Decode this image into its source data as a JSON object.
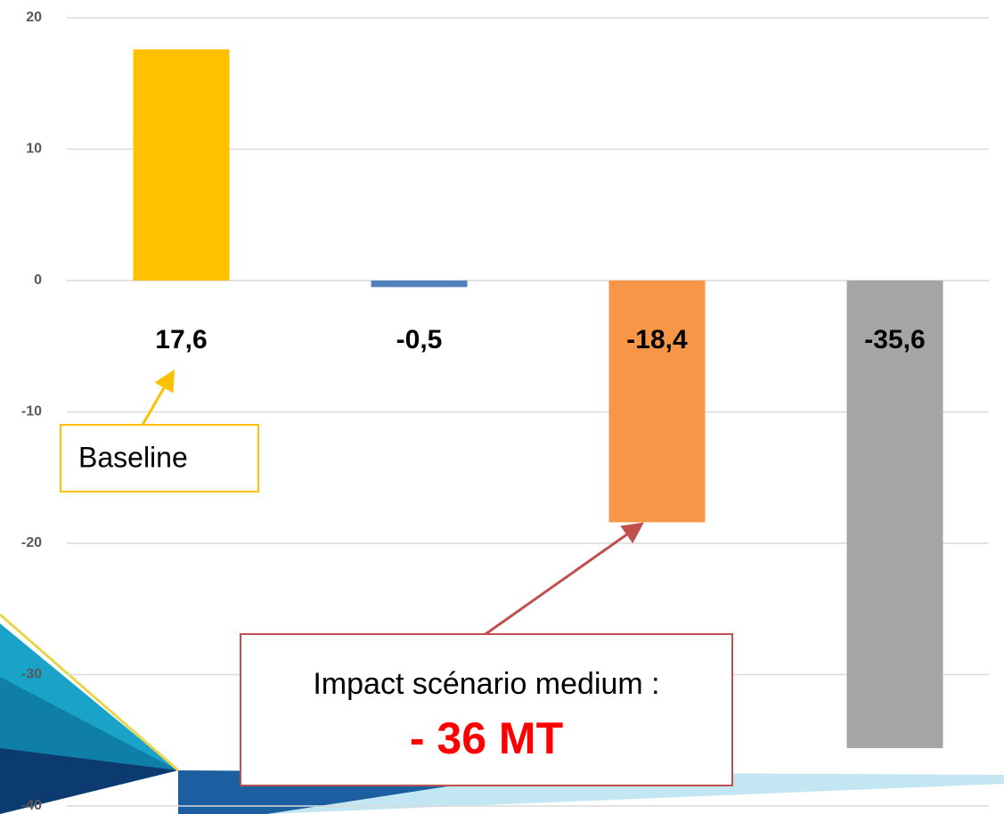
{
  "chart_data": {
    "type": "bar",
    "categories": [
      null,
      null,
      null,
      null
    ],
    "series": [
      {
        "values": [
          17.6,
          -0.5,
          -18.4,
          -35.6
        ],
        "value_labels": [
          "17,6",
          "-0,5",
          "-18,4",
          "-35,6"
        ],
        "colors": [
          "#ffc000",
          "#4f81bd",
          "#f79646",
          "#a5a5a5"
        ]
      }
    ],
    "ylim": [
      -40,
      20
    ],
    "yticks": [
      -40,
      -30,
      -20,
      -10,
      0,
      10,
      20
    ],
    "grid": true,
    "annotations": [
      {
        "text": "Baseline"
      },
      {
        "text": "Impact scénario medium :"
      },
      {
        "text": "- 36 MT"
      }
    ]
  }
}
